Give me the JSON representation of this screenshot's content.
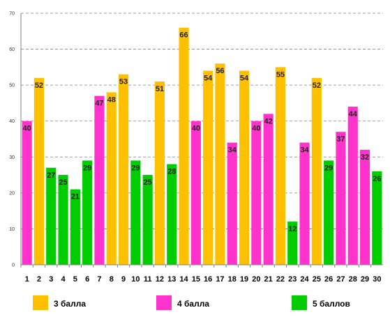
{
  "chart_data": {
    "type": "bar",
    "categories": [
      "1",
      "2",
      "3",
      "4",
      "5",
      "6",
      "7",
      "8",
      "9",
      "10",
      "11",
      "12",
      "13",
      "14",
      "15",
      "16",
      "17",
      "18",
      "19",
      "20",
      "21",
      "22",
      "23",
      "24",
      "25",
      "26",
      "27",
      "28",
      "29",
      "30"
    ],
    "values": [
      40,
      52,
      27,
      25,
      21,
      29,
      47,
      48,
      53,
      29,
      25,
      51,
      28,
      66,
      40,
      54,
      56,
      34,
      54,
      40,
      42,
      55,
      12,
      34,
      52,
      29,
      37,
      44,
      32,
      26
    ],
    "groups": [
      "4",
      "3",
      "5",
      "5",
      "5",
      "5",
      "4",
      "3",
      "3",
      "5",
      "5",
      "3",
      "5",
      "3",
      "4",
      "3",
      "3",
      "4",
      "3",
      "4",
      "4",
      "3",
      "5",
      "4",
      "3",
      "5",
      "4",
      "4",
      "4",
      "5"
    ],
    "ylim": [
      0,
      70
    ],
    "yticks": [
      "0",
      "10",
      "20",
      "30",
      "40",
      "50",
      "60",
      "70"
    ],
    "grid": true,
    "legend_placement": "bottom",
    "legend": [
      {
        "key": "3",
        "label": "3 балла",
        "color": "#FFC000"
      },
      {
        "key": "4",
        "label": "4 балла",
        "color": "#FF33CC"
      },
      {
        "key": "5",
        "label": "5 баллов",
        "color": "#00CC00"
      }
    ],
    "colors": {
      "3": "#FFC000",
      "4": "#FF33CC",
      "5": "#00CC00"
    }
  }
}
